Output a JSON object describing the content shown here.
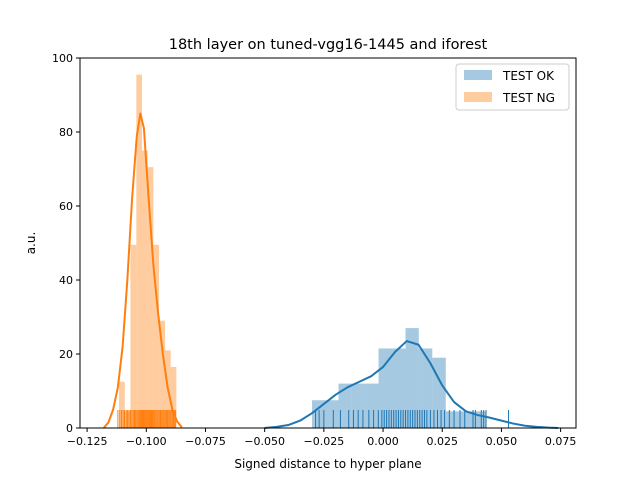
{
  "chart_data": {
    "type": "histogram+kde",
    "title": "18th layer on tuned-vgg16-1445 and iforest",
    "xlabel": "Signed distance to hyper plane",
    "ylabel": "a.u.",
    "xlim": [
      -0.128,
      0.0815
    ],
    "ylim": [
      0,
      100
    ],
    "xticks": [
      -0.125,
      -0.1,
      -0.075,
      -0.05,
      -0.025,
      0.0,
      0.025,
      0.05,
      0.075
    ],
    "xtick_labels": [
      "−0.125",
      "−0.100",
      "−0.075",
      "−0.050",
      "−0.025",
      "0.000",
      "0.025",
      "0.050",
      "0.075"
    ],
    "yticks": [
      0,
      20,
      40,
      60,
      80,
      100
    ],
    "ytick_labels": [
      "0",
      "20",
      "40",
      "60",
      "80",
      "100"
    ],
    "legend_position": "top-right",
    "grid": false,
    "series": [
      {
        "name": "TEST OK",
        "color": "#1f77b4",
        "histogram": [
          {
            "x0": -0.03,
            "x1": -0.0245,
            "y": 7.5
          },
          {
            "x0": -0.0245,
            "x1": -0.0188,
            "y": 7.5
          },
          {
            "x0": -0.0188,
            "x1": -0.0132,
            "y": 12
          },
          {
            "x0": -0.0132,
            "x1": -0.0075,
            "y": 12
          },
          {
            "x0": -0.0075,
            "x1": -0.0019,
            "y": 12
          },
          {
            "x0": -0.0019,
            "x1": 0.0038,
            "y": 21.5
          },
          {
            "x0": 0.0038,
            "x1": 0.0095,
            "y": 21.5
          },
          {
            "x0": 0.0095,
            "x1": 0.0151,
            "y": 27
          },
          {
            "x0": 0.0151,
            "x1": 0.0208,
            "y": 21.5
          },
          {
            "x0": 0.0208,
            "x1": 0.0265,
            "y": 19
          },
          {
            "x0": 0.0265,
            "x1": 0.0321,
            "y": 4.5
          },
          {
            "x0": 0.0321,
            "x1": 0.0378,
            "y": 4.5
          },
          {
            "x0": 0.0378,
            "x1": 0.0435,
            "y": 4.5
          }
        ],
        "kde": [
          {
            "x": -0.05,
            "y": 0
          },
          {
            "x": -0.045,
            "y": 0.3
          },
          {
            "x": -0.04,
            "y": 0.8
          },
          {
            "x": -0.035,
            "y": 2
          },
          {
            "x": -0.03,
            "y": 4
          },
          {
            "x": -0.025,
            "y": 6.5
          },
          {
            "x": -0.02,
            "y": 9
          },
          {
            "x": -0.015,
            "y": 11
          },
          {
            "x": -0.01,
            "y": 12.5
          },
          {
            "x": -0.005,
            "y": 14
          },
          {
            "x": 0.0,
            "y": 16.5
          },
          {
            "x": 0.005,
            "y": 20.5
          },
          {
            "x": 0.01,
            "y": 23.5
          },
          {
            "x": 0.015,
            "y": 22.5
          },
          {
            "x": 0.02,
            "y": 17.5
          },
          {
            "x": 0.025,
            "y": 11.5
          },
          {
            "x": 0.03,
            "y": 7
          },
          {
            "x": 0.035,
            "y": 4.5
          },
          {
            "x": 0.04,
            "y": 3.5
          },
          {
            "x": 0.045,
            "y": 2.8
          },
          {
            "x": 0.05,
            "y": 2
          },
          {
            "x": 0.055,
            "y": 1.2
          },
          {
            "x": 0.06,
            "y": 0.6
          },
          {
            "x": 0.065,
            "y": 0.3
          },
          {
            "x": 0.07,
            "y": 0.1
          },
          {
            "x": 0.074,
            "y": 0
          }
        ],
        "rug": [
          -0.0285,
          -0.027,
          -0.025,
          -0.021,
          -0.018,
          -0.0145,
          -0.0125,
          -0.0105,
          -0.0085,
          -0.006,
          -0.004,
          -0.002,
          -0.0005,
          0.0005,
          0.0015,
          0.0025,
          0.0035,
          0.0045,
          0.0055,
          0.0065,
          0.0075,
          0.0085,
          0.0095,
          0.0105,
          0.0115,
          0.0125,
          0.0135,
          0.0145,
          0.0155,
          0.0165,
          0.0175,
          0.0185,
          0.02,
          0.0215,
          0.023,
          0.0245,
          0.026,
          0.028,
          0.03,
          0.0325,
          0.0345,
          0.038,
          0.039,
          0.0415,
          0.0425,
          0.0435,
          0.053
        ]
      },
      {
        "name": "TEST NG",
        "color": "#ff7f0e",
        "histogram": [
          {
            "x0": -0.1115,
            "x1": -0.1091,
            "y": 12.5
          },
          {
            "x0": -0.1091,
            "x1": -0.1067,
            "y": 4.5
          },
          {
            "x0": -0.1067,
            "x1": -0.1042,
            "y": 49.5
          },
          {
            "x0": -0.1042,
            "x1": -0.1018,
            "y": 95.5
          },
          {
            "x0": -0.1018,
            "x1": -0.0994,
            "y": 75
          },
          {
            "x0": -0.0994,
            "x1": -0.097,
            "y": 70.5
          },
          {
            "x0": -0.097,
            "x1": -0.0946,
            "y": 49.5
          },
          {
            "x0": -0.0946,
            "x1": -0.0921,
            "y": 29
          },
          {
            "x0": -0.0921,
            "x1": -0.0897,
            "y": 21
          },
          {
            "x0": -0.0897,
            "x1": -0.0873,
            "y": 16.5
          }
        ],
        "kde": [
          {
            "x": -0.118,
            "y": 0
          },
          {
            "x": -0.116,
            "y": 1.5
          },
          {
            "x": -0.114,
            "y": 5
          },
          {
            "x": -0.112,
            "y": 11
          },
          {
            "x": -0.11,
            "y": 22
          },
          {
            "x": -0.108,
            "y": 40
          },
          {
            "x": -0.106,
            "y": 62
          },
          {
            "x": -0.104,
            "y": 79
          },
          {
            "x": -0.1025,
            "y": 85
          },
          {
            "x": -0.101,
            "y": 81
          },
          {
            "x": -0.099,
            "y": 62
          },
          {
            "x": -0.097,
            "y": 44
          },
          {
            "x": -0.095,
            "y": 31
          },
          {
            "x": -0.093,
            "y": 20
          },
          {
            "x": -0.091,
            "y": 11
          },
          {
            "x": -0.089,
            "y": 5
          },
          {
            "x": -0.087,
            "y": 1.8
          },
          {
            "x": -0.085,
            "y": 0.2
          }
        ],
        "rug": [
          -0.112,
          -0.1112,
          -0.1105,
          -0.1098,
          -0.1092,
          -0.1085,
          -0.1079,
          -0.1073,
          -0.1067,
          -0.1061,
          -0.1055,
          -0.105,
          -0.1045,
          -0.104,
          -0.1035,
          -0.103,
          -0.1026,
          -0.1022,
          -0.1018,
          -0.1014,
          -0.101,
          -0.1006,
          -0.1002,
          -0.0998,
          -0.0994,
          -0.099,
          -0.0986,
          -0.0982,
          -0.0978,
          -0.0974,
          -0.097,
          -0.0965,
          -0.096,
          -0.0955,
          -0.095,
          -0.0945,
          -0.094,
          -0.0935,
          -0.093,
          -0.0925,
          -0.092,
          -0.0915,
          -0.091,
          -0.0905,
          -0.09,
          -0.0895,
          -0.089,
          -0.0885,
          -0.088,
          -0.0876
        ]
      }
    ]
  }
}
